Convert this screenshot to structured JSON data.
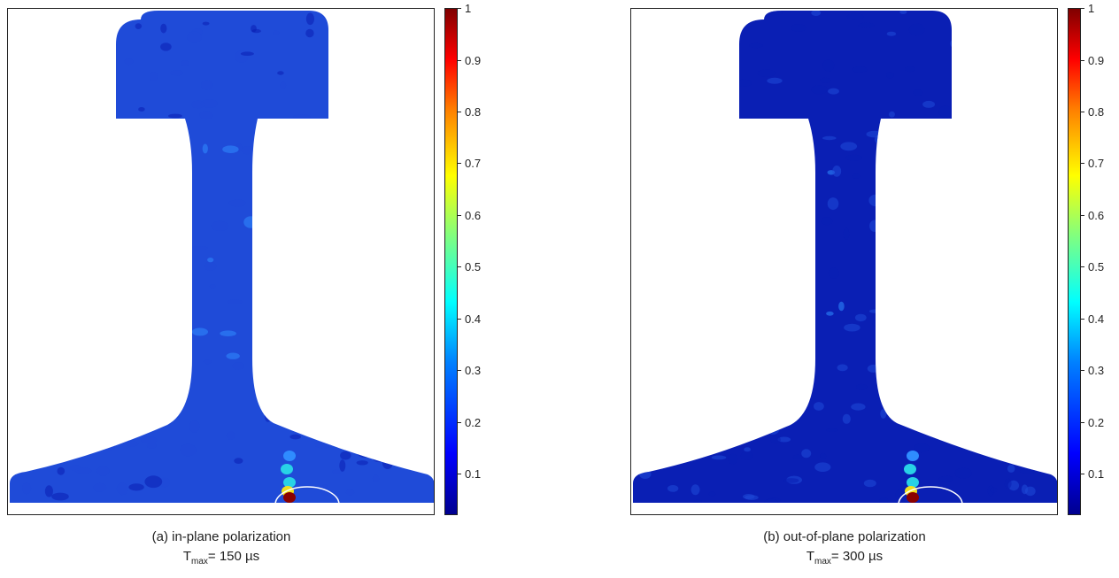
{
  "chart_data": [
    {
      "type": "heatmap",
      "caption": "(a) in-plane polarization",
      "tmax_symbol": "T",
      "tmax_subscript": "max",
      "tmax_value": "= 150 µs",
      "colorbar": {
        "range": [
          0.02,
          1
        ],
        "ticks": [
          "1",
          "0.9",
          "0.8",
          "0.7",
          "0.6",
          "0.5",
          "0.4",
          "0.3",
          "0.2",
          "0.1"
        ],
        "colormap": "jet"
      },
      "dominant_level": 0.15,
      "web_level": 0.3,
      "hotspot": {
        "location": "bottom of rail foot, right of center",
        "peak_value": 1.0
      },
      "annotation": "white ellipse around hotspot"
    },
    {
      "type": "heatmap",
      "caption": "(b) out-of-plane polarization",
      "tmax_symbol": "T",
      "tmax_subscript": "max",
      "tmax_value": "= 300 µs",
      "colorbar": {
        "range": [
          0.02,
          1
        ],
        "ticks": [
          "1",
          "0.9",
          "0.8",
          "0.7",
          "0.6",
          "0.5",
          "0.4",
          "0.3",
          "0.2",
          "0.1"
        ],
        "colormap": "jet"
      },
      "dominant_level": 0.12,
      "web_level": 0.2,
      "hotspot": {
        "location": "bottom of rail foot, right of center",
        "peak_value": 1.0
      },
      "annotation": "white ellipse around hotspot"
    }
  ],
  "colors": {
    "deep_blue": "#0a1fb4",
    "mid_blue": "#1f4bd8",
    "light_blue": "#2f8cff",
    "cyan": "#28d2e6",
    "yellow": "#f0e020",
    "orange": "#ff7a00",
    "red": "#e00000",
    "dark_red": "#8b0000",
    "ellipse": "#ffffff"
  }
}
